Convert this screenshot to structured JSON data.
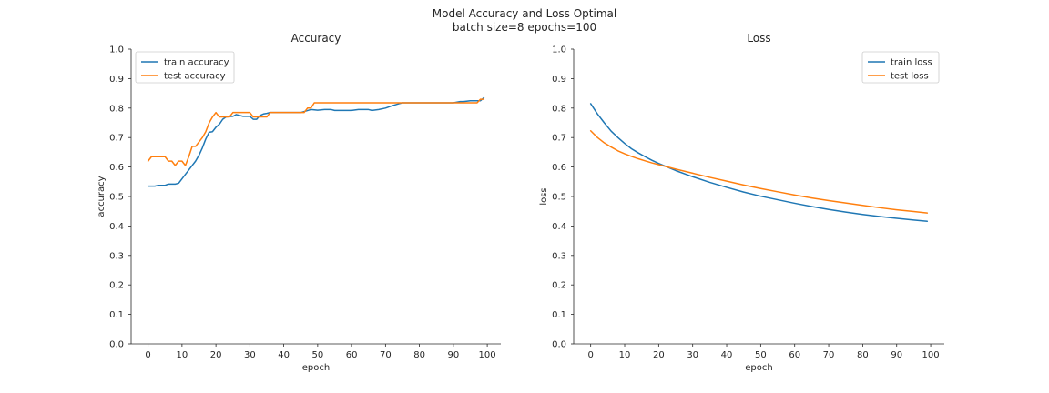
{
  "figure": {
    "suptitle_line1": "Model Accuracy and Loss Optimal",
    "suptitle_line2": "batch size=8 epochs=100"
  },
  "chart_data": [
    {
      "type": "line",
      "title": "Accuracy",
      "xlabel": "epoch",
      "ylabel": "accuracy",
      "xlim": [
        -5,
        104
      ],
      "ylim": [
        0.0,
        1.0
      ],
      "xticks": [
        0,
        10,
        20,
        30,
        40,
        50,
        60,
        70,
        80,
        90,
        100
      ],
      "yticks": [
        0.0,
        0.1,
        0.2,
        0.3,
        0.4,
        0.5,
        0.6,
        0.7,
        0.8,
        0.9,
        1.0
      ],
      "legend_position": "upper-left",
      "grid": false,
      "series": [
        {
          "name": "train accuracy",
          "color": "#1f77b4",
          "x": [
            0,
            2,
            3,
            5,
            6,
            8,
            9,
            10,
            11,
            12,
            13,
            14,
            15,
            16,
            17,
            18,
            19,
            20,
            21,
            22,
            23,
            25,
            26,
            28,
            30,
            31,
            32,
            33,
            34,
            35,
            36,
            38,
            40,
            45,
            48,
            50,
            52,
            54,
            55,
            56,
            58,
            60,
            62,
            65,
            66,
            68,
            70,
            72,
            74,
            75,
            80,
            85,
            90,
            92,
            93,
            95,
            98,
            99
          ],
          "y": [
            0.535,
            0.535,
            0.538,
            0.538,
            0.542,
            0.542,
            0.545,
            0.56,
            0.575,
            0.59,
            0.605,
            0.62,
            0.64,
            0.665,
            0.695,
            0.718,
            0.72,
            0.735,
            0.745,
            0.762,
            0.77,
            0.772,
            0.778,
            0.772,
            0.772,
            0.762,
            0.762,
            0.775,
            0.78,
            0.782,
            0.785,
            0.785,
            0.785,
            0.785,
            0.795,
            0.793,
            0.795,
            0.795,
            0.792,
            0.792,
            0.792,
            0.792,
            0.795,
            0.795,
            0.792,
            0.795,
            0.8,
            0.808,
            0.815,
            0.818,
            0.818,
            0.818,
            0.818,
            0.822,
            0.822,
            0.825,
            0.825,
            0.835
          ]
        },
        {
          "name": "test accuracy",
          "color": "#ff7f0e",
          "x": [
            0,
            1,
            3,
            4,
            5,
            6,
            7,
            8,
            9,
            10,
            11,
            12,
            13,
            14,
            15,
            16,
            17,
            18,
            19,
            20,
            21,
            22,
            23,
            24,
            25,
            26,
            27,
            28,
            29,
            30,
            31,
            32,
            33,
            34,
            35,
            36,
            37,
            38,
            40,
            44,
            45,
            46,
            47,
            48,
            49,
            55,
            60,
            70,
            72,
            73,
            74,
            80,
            90,
            97,
            98,
            99
          ],
          "y": [
            0.62,
            0.635,
            0.635,
            0.635,
            0.635,
            0.62,
            0.62,
            0.605,
            0.62,
            0.62,
            0.605,
            0.635,
            0.67,
            0.67,
            0.685,
            0.7,
            0.72,
            0.75,
            0.77,
            0.785,
            0.77,
            0.77,
            0.77,
            0.77,
            0.785,
            0.785,
            0.785,
            0.785,
            0.785,
            0.785,
            0.77,
            0.77,
            0.77,
            0.77,
            0.77,
            0.785,
            0.785,
            0.785,
            0.785,
            0.785,
            0.785,
            0.785,
            0.8,
            0.8,
            0.818,
            0.818,
            0.818,
            0.818,
            0.818,
            0.818,
            0.818,
            0.818,
            0.818,
            0.818,
            0.83,
            0.83
          ]
        }
      ]
    },
    {
      "type": "line",
      "title": "Loss",
      "xlabel": "epoch",
      "ylabel": "loss",
      "xlim": [
        -5,
        104
      ],
      "ylim": [
        0.0,
        1.0
      ],
      "xticks": [
        0,
        10,
        20,
        30,
        40,
        50,
        60,
        70,
        80,
        90,
        100
      ],
      "yticks": [
        0.0,
        0.1,
        0.2,
        0.3,
        0.4,
        0.5,
        0.6,
        0.7,
        0.8,
        0.9,
        1.0
      ],
      "legend_position": "upper-right",
      "grid": false,
      "series": [
        {
          "name": "train loss",
          "color": "#1f77b4",
          "x": [
            0,
            2,
            4,
            6,
            8,
            10,
            12,
            14,
            16,
            18,
            20,
            25,
            30,
            35,
            40,
            45,
            50,
            55,
            60,
            65,
            70,
            75,
            80,
            85,
            90,
            95,
            99
          ],
          "y": [
            0.815,
            0.78,
            0.75,
            0.722,
            0.7,
            0.68,
            0.662,
            0.648,
            0.635,
            0.623,
            0.612,
            0.588,
            0.567,
            0.548,
            0.531,
            0.515,
            0.501,
            0.489,
            0.477,
            0.466,
            0.456,
            0.447,
            0.439,
            0.432,
            0.426,
            0.42,
            0.416
          ]
        },
        {
          "name": "test loss",
          "color": "#ff7f0e",
          "x": [
            0,
            2,
            4,
            6,
            8,
            10,
            12,
            14,
            16,
            18,
            20,
            25,
            30,
            35,
            40,
            45,
            50,
            55,
            60,
            65,
            70,
            75,
            80,
            85,
            90,
            95,
            99
          ],
          "y": [
            0.723,
            0.7,
            0.682,
            0.668,
            0.655,
            0.645,
            0.636,
            0.628,
            0.621,
            0.614,
            0.608,
            0.593,
            0.579,
            0.565,
            0.552,
            0.539,
            0.527,
            0.516,
            0.505,
            0.495,
            0.486,
            0.478,
            0.47,
            0.462,
            0.455,
            0.449,
            0.444
          ]
        }
      ]
    }
  ]
}
